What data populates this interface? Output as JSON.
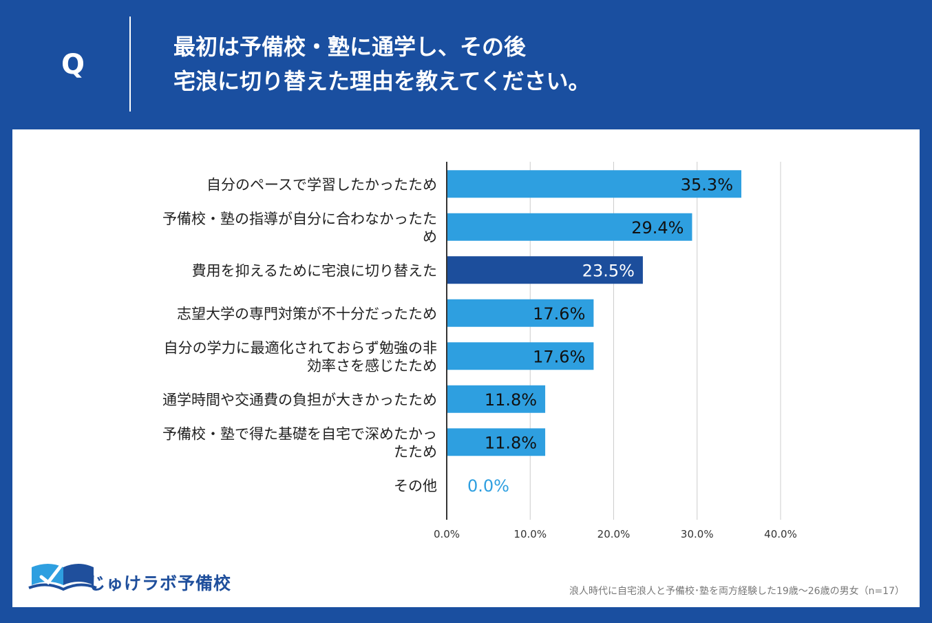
{
  "question": {
    "mark": "Q",
    "line1": "最初は予備校・塾に通学し、その後",
    "line2": "宅浪に切り替えた理由を教えてください。"
  },
  "colors": {
    "background": "#1a4fa0",
    "bar": "#2e9fe0",
    "bar_highlight": "#1c4e9c",
    "axis": "#333333",
    "grid": "#cccccc"
  },
  "chart_data": {
    "type": "bar",
    "orientation": "horizontal",
    "categories": [
      [
        "自分のペースで学習したかったため"
      ],
      [
        "予備校・塾の指導が自分に合わなかったた",
        "め"
      ],
      [
        "費用を抑えるために宅浪に切り替えた"
      ],
      [
        "志望大学の専門対策が不十分だったため"
      ],
      [
        "自分の学力に最適化されておらず勉強の非",
        "効率さを感じたため"
      ],
      [
        "通学時間や交通費の負担が大きかったため"
      ],
      [
        "予備校・塾で得た基礎を自宅で深めたかっ",
        "たため"
      ],
      [
        "その他"
      ]
    ],
    "values": [
      35.3,
      29.4,
      23.5,
      17.6,
      17.6,
      11.8,
      11.8,
      0.0
    ],
    "data_labels": [
      "35.3%",
      "29.4%",
      "23.5%",
      "17.6%",
      "17.6%",
      "11.8%",
      "11.8%",
      "0.0%"
    ],
    "highlight_index": 2,
    "xlim": [
      0,
      40
    ],
    "xticks": [
      0,
      10,
      20,
      30,
      40
    ],
    "xtick_labels": [
      "0.0%",
      "10.0%",
      "20.0%",
      "30.0%",
      "40.0%"
    ],
    "grid": true,
    "title": "",
    "xlabel": "",
    "ylabel": ""
  },
  "logo": {
    "name": "じゅけラボ予備校"
  },
  "footnote": "浪人時代に自宅浪人と予備校･塾を両方経験した19歳〜26歳の男女（n=17）"
}
